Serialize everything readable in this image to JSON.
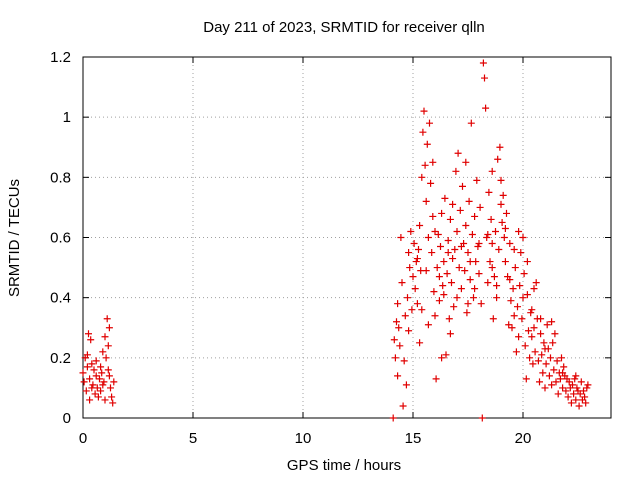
{
  "chart_data": {
    "type": "scatter",
    "title": "Day 211 of 2023, SRMTID for receiver qlln",
    "xlabel": "GPS time / hours",
    "ylabel": "SRMTID / TECUs",
    "xlim": [
      0,
      24
    ],
    "ylim": [
      0,
      1.2
    ],
    "xticks": [
      0,
      5,
      10,
      15,
      20
    ],
    "yticks": [
      0,
      0.2,
      0.4,
      0.6,
      0.8,
      1,
      1.2
    ],
    "ytick_labels": [
      "0",
      "0.2",
      "0.4",
      "0.6",
      "0.8",
      "1",
      "1.2"
    ],
    "grid": true,
    "marker": "plus",
    "color": "#e00000",
    "series": [
      {
        "name": "SRMTID",
        "points": [
          [
            0.0,
            0.15
          ],
          [
            0.05,
            0.12
          ],
          [
            0.1,
            0.2
          ],
          [
            0.15,
            0.09
          ],
          [
            0.2,
            0.17
          ],
          [
            0.25,
            0.28
          ],
          [
            0.3,
            0.13
          ],
          [
            0.35,
            0.26
          ],
          [
            0.4,
            0.18
          ],
          [
            0.45,
            0.11
          ],
          [
            0.5,
            0.16
          ],
          [
            0.55,
            0.08
          ],
          [
            0.6,
            0.14
          ],
          [
            0.65,
            0.1
          ],
          [
            0.7,
            0.07
          ],
          [
            0.75,
            0.13
          ],
          [
            0.8,
            0.09
          ],
          [
            0.85,
            0.15
          ],
          [
            0.9,
            0.22
          ],
          [
            0.95,
            0.12
          ],
          [
            1.0,
            0.27
          ],
          [
            1.05,
            0.2
          ],
          [
            1.1,
            0.33
          ],
          [
            1.15,
            0.24
          ],
          [
            1.2,
            0.14
          ],
          [
            1.25,
            0.1
          ],
          [
            1.3,
            0.07
          ],
          [
            1.35,
            0.05
          ],
          [
            1.4,
            0.12
          ],
          [
            0.2,
            0.21
          ],
          [
            0.4,
            0.1
          ],
          [
            0.6,
            0.19
          ],
          [
            0.8,
            0.17
          ],
          [
            1.0,
            0.06
          ],
          [
            1.2,
            0.3
          ],
          [
            0.3,
            0.06
          ],
          [
            0.9,
            0.11
          ],
          [
            1.15,
            0.16
          ],
          [
            14.1,
            0.0
          ],
          [
            14.15,
            0.26
          ],
          [
            14.2,
            0.2
          ],
          [
            14.25,
            0.32
          ],
          [
            14.3,
            0.14
          ],
          [
            14.35,
            0.3
          ],
          [
            14.4,
            0.24
          ],
          [
            14.45,
            0.6
          ],
          [
            14.5,
            0.45
          ],
          [
            14.55,
            0.04
          ],
          [
            14.6,
            0.19
          ],
          [
            14.65,
            0.34
          ],
          [
            14.7,
            0.11
          ],
          [
            14.75,
            0.4
          ],
          [
            14.8,
            0.55
          ],
          [
            14.85,
            0.5
          ],
          [
            14.9,
            0.62
          ],
          [
            14.95,
            0.36
          ],
          [
            15.0,
            0.47
          ],
          [
            15.05,
            0.58
          ],
          [
            15.1,
            0.43
          ],
          [
            15.15,
            0.52
          ],
          [
            15.2,
            0.38
          ],
          [
            15.25,
            0.56
          ],
          [
            15.3,
            0.64
          ],
          [
            15.35,
            0.49
          ],
          [
            15.4,
            0.8
          ],
          [
            15.45,
            0.95
          ],
          [
            15.5,
            1.02
          ],
          [
            15.55,
            0.84
          ],
          [
            15.6,
            0.72
          ],
          [
            15.65,
            0.91
          ],
          [
            15.7,
            0.6
          ],
          [
            15.75,
            0.98
          ],
          [
            15.8,
            0.78
          ],
          [
            15.85,
            0.55
          ],
          [
            15.9,
            0.67
          ],
          [
            15.95,
            0.42
          ],
          [
            16.0,
            0.34
          ],
          [
            16.05,
            0.13
          ],
          [
            16.1,
            0.5
          ],
          [
            16.15,
            0.61
          ],
          [
            16.2,
            0.39
          ],
          [
            16.25,
            0.57
          ],
          [
            16.3,
            0.68
          ],
          [
            16.35,
            0.44
          ],
          [
            16.4,
            0.52
          ],
          [
            16.45,
            0.73
          ],
          [
            16.5,
            0.21
          ],
          [
            16.55,
            0.48
          ],
          [
            16.6,
            0.59
          ],
          [
            16.65,
            0.33
          ],
          [
            16.7,
            0.66
          ],
          [
            16.75,
            0.45
          ],
          [
            16.8,
            0.71
          ],
          [
            16.85,
            0.37
          ],
          [
            16.9,
            0.56
          ],
          [
            16.95,
            0.82
          ],
          [
            17.0,
            0.62
          ],
          [
            17.05,
            0.88
          ],
          [
            17.1,
            0.5
          ],
          [
            17.15,
            0.69
          ],
          [
            17.2,
            0.43
          ],
          [
            17.25,
            0.77
          ],
          [
            17.3,
            0.58
          ],
          [
            17.35,
            0.49
          ],
          [
            17.4,
            0.64
          ],
          [
            17.45,
            0.35
          ],
          [
            17.5,
            0.55
          ],
          [
            17.55,
            0.72
          ],
          [
            17.6,
            0.46
          ],
          [
            17.65,
            0.98
          ],
          [
            17.7,
            0.61
          ],
          [
            17.75,
            0.4
          ],
          [
            17.8,
            0.67
          ],
          [
            17.85,
            0.52
          ],
          [
            17.9,
            0.79
          ],
          [
            17.95,
            0.57
          ],
          [
            18.0,
            0.48
          ],
          [
            18.05,
            0.7
          ],
          [
            18.1,
            0.38
          ],
          [
            18.15,
            0.0
          ],
          [
            18.2,
            1.18
          ],
          [
            18.25,
            1.13
          ],
          [
            18.3,
            1.03
          ],
          [
            18.35,
            0.6
          ],
          [
            18.4,
            0.45
          ],
          [
            18.45,
            0.75
          ],
          [
            18.5,
            0.52
          ],
          [
            18.55,
            0.66
          ],
          [
            18.6,
            0.58
          ],
          [
            18.65,
            0.33
          ],
          [
            18.7,
            0.47
          ],
          [
            18.75,
            0.62
          ],
          [
            18.8,
            0.4
          ],
          [
            18.85,
            0.86
          ],
          [
            18.9,
            0.56
          ],
          [
            18.95,
            0.9
          ],
          [
            19.0,
            0.71
          ],
          [
            19.05,
            0.65
          ],
          [
            19.1,
            0.74
          ],
          [
            19.15,
            0.6
          ],
          [
            19.2,
            0.52
          ],
          [
            19.25,
            0.68
          ],
          [
            19.3,
            0.47
          ],
          [
            19.35,
            0.31
          ],
          [
            19.4,
            0.58
          ],
          [
            19.45,
            0.39
          ],
          [
            19.5,
            0.3
          ],
          [
            19.55,
            0.43
          ],
          [
            19.6,
            0.34
          ],
          [
            19.65,
            0.5
          ],
          [
            19.7,
            0.22
          ],
          [
            19.75,
            0.37
          ],
          [
            19.8,
            0.27
          ],
          [
            19.85,
            0.44
          ],
          [
            19.9,
            0.55
          ],
          [
            19.95,
            0.33
          ],
          [
            20.0,
            0.6
          ],
          [
            20.05,
            0.48
          ],
          [
            20.1,
            0.24
          ],
          [
            20.15,
            0.13
          ],
          [
            20.2,
            0.41
          ],
          [
            20.25,
            0.29
          ],
          [
            20.3,
            0.2
          ],
          [
            20.35,
            0.35
          ],
          [
            20.4,
            0.27
          ],
          [
            20.45,
            0.18
          ],
          [
            20.5,
            0.3
          ],
          [
            20.55,
            0.22
          ],
          [
            20.6,
            0.45
          ],
          [
            20.65,
            0.33
          ],
          [
            20.7,
            0.19
          ],
          [
            20.75,
            0.12
          ],
          [
            20.8,
            0.28
          ],
          [
            20.85,
            0.21
          ],
          [
            20.9,
            0.15
          ],
          [
            20.95,
            0.25
          ],
          [
            21.0,
            0.1
          ],
          [
            21.05,
            0.18
          ],
          [
            21.1,
            0.31
          ],
          [
            21.15,
            0.23
          ],
          [
            21.2,
            0.14
          ],
          [
            21.25,
            0.2
          ],
          [
            21.3,
            0.11
          ],
          [
            21.35,
            0.25
          ],
          [
            21.4,
            0.16
          ],
          [
            21.45,
            0.28
          ],
          [
            21.5,
            0.12
          ],
          [
            21.55,
            0.19
          ],
          [
            21.6,
            0.08
          ],
          [
            21.65,
            0.15
          ],
          [
            21.7,
            0.13
          ],
          [
            21.75,
            0.2
          ],
          [
            21.8,
            0.1
          ],
          [
            21.85,
            0.17
          ],
          [
            21.9,
            0.14
          ],
          [
            21.95,
            0.09
          ],
          [
            22.0,
            0.13
          ],
          [
            22.05,
            0.07
          ],
          [
            22.1,
            0.12
          ],
          [
            22.15,
            0.1
          ],
          [
            22.2,
            0.05
          ],
          [
            22.25,
            0.11
          ],
          [
            22.3,
            0.08
          ],
          [
            22.35,
            0.13
          ],
          [
            22.4,
            0.06
          ],
          [
            22.45,
            0.1
          ],
          [
            22.5,
            0.09
          ],
          [
            22.55,
            0.04
          ],
          [
            22.6,
            0.08
          ],
          [
            22.65,
            0.12
          ],
          [
            22.7,
            0.06
          ],
          [
            22.75,
            0.09
          ],
          [
            22.8,
            0.07
          ],
          [
            22.85,
            0.05
          ],
          [
            22.9,
            0.1
          ],
          [
            22.95,
            0.11
          ],
          [
            15.2,
            0.53
          ],
          [
            15.6,
            0.49
          ],
          [
            16.0,
            0.62
          ],
          [
            16.4,
            0.41
          ],
          [
            16.8,
            0.53
          ],
          [
            17.2,
            0.57
          ],
          [
            17.6,
            0.52
          ],
          [
            18.0,
            0.58
          ],
          [
            18.4,
            0.61
          ],
          [
            18.8,
            0.44
          ],
          [
            19.2,
            0.63
          ],
          [
            19.6,
            0.56
          ],
          [
            20.0,
            0.4
          ],
          [
            20.4,
            0.36
          ],
          [
            20.8,
            0.33
          ],
          [
            15.4,
            0.36
          ],
          [
            16.2,
            0.47
          ],
          [
            17.0,
            0.4
          ],
          [
            17.8,
            0.43
          ],
          [
            18.6,
            0.5
          ],
          [
            19.4,
            0.46
          ],
          [
            20.2,
            0.52
          ],
          [
            21.0,
            0.23
          ],
          [
            21.8,
            0.15
          ],
          [
            22.4,
            0.14
          ],
          [
            15.9,
            0.85
          ],
          [
            16.6,
            0.55
          ],
          [
            17.4,
            0.85
          ],
          [
            18.6,
            0.82
          ],
          [
            19.0,
            0.79
          ],
          [
            17.5,
            0.38
          ],
          [
            16.7,
            0.28
          ],
          [
            15.3,
            0.25
          ],
          [
            14.8,
            0.29
          ],
          [
            14.3,
            0.38
          ],
          [
            15.7,
            0.31
          ],
          [
            16.3,
            0.2
          ],
          [
            19.8,
            0.62
          ],
          [
            20.5,
            0.43
          ],
          [
            21.3,
            0.32
          ]
        ]
      }
    ]
  }
}
